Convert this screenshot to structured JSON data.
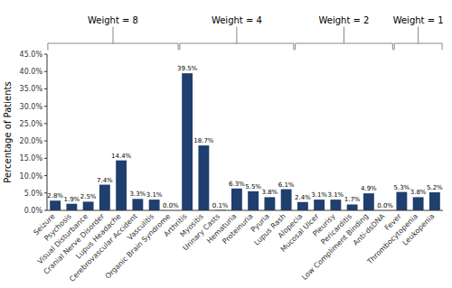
{
  "chart_data": {
    "type": "bar",
    "ylabel": "Percentage of Patients",
    "categories": [
      "Seizure",
      "Psychosis",
      "Visual Disturbance",
      "Cranial Nerve Disorder",
      "Lupus Headache",
      "Cerebrovascular Accident",
      "Vasculitis",
      "Organic Brain Syndrome",
      "Arthritis",
      "Myositis",
      "Urinary Casts",
      "Hematuria",
      "Proteinuria",
      "Pyuria",
      "Lupus Rash",
      "Alopecia",
      "Mucosal Ulcer",
      "Pleurisy",
      "Pericarditis",
      "Low Compliment Binding",
      "Anti-dsDNA",
      "Fever",
      "Thrombocytopenia",
      "Leukopenia"
    ],
    "values": [
      2.8,
      1.9,
      2.5,
      7.4,
      14.4,
      3.3,
      3.1,
      0.0,
      39.5,
      18.7,
      0.1,
      6.3,
      5.5,
      3.8,
      6.1,
      2.4,
      3.1,
      3.1,
      1.7,
      4.9,
      0.0,
      5.3,
      3.8,
      5.2
    ],
    "value_labels": [
      "2.8%",
      "1.9%",
      "2.5%",
      "7.4%",
      "14.4%",
      "3.3%",
      "3.1%",
      "0.0%",
      "39.5%",
      "18.7%",
      "0.1%",
      "6.3%",
      "5.5%",
      "3.8%",
      "6.1%",
      "2.4%",
      "3.1%",
      "3.1%",
      "1.7%",
      "4.9%",
      "0.0%",
      "5.3%",
      "3.8%",
      "5.2%"
    ],
    "color": "#1f3f6e",
    "ylim": [
      0,
      45
    ],
    "yticks": [
      {
        "value": 0,
        "label": "0.0%"
      },
      {
        "value": 5,
        "label": "5.0%"
      },
      {
        "value": 10,
        "label": "10.0%"
      },
      {
        "value": 15,
        "label": "15.0%"
      },
      {
        "value": 20,
        "label": "20.0%"
      },
      {
        "value": 25,
        "label": "25.0%"
      },
      {
        "value": 30,
        "label": "30.0%"
      },
      {
        "value": 35,
        "label": "35.0%"
      },
      {
        "value": 40,
        "label": "40.0%"
      },
      {
        "value": 45,
        "label": "45.0%"
      }
    ],
    "grid": false,
    "data_labels": true,
    "annotations": [
      {
        "text": "Weight = 8",
        "from": "Seizure",
        "to": "Organic Brain Syndrome"
      },
      {
        "text": "Weight = 4",
        "from": "Arthritis",
        "to": "Lupus Rash"
      },
      {
        "text": "Weight = 2",
        "from": "Alopecia",
        "to": "Anti-dsDNA"
      },
      {
        "text": "Weight = 1",
        "from": "Fever",
        "to": "Leukopenia"
      }
    ]
  }
}
